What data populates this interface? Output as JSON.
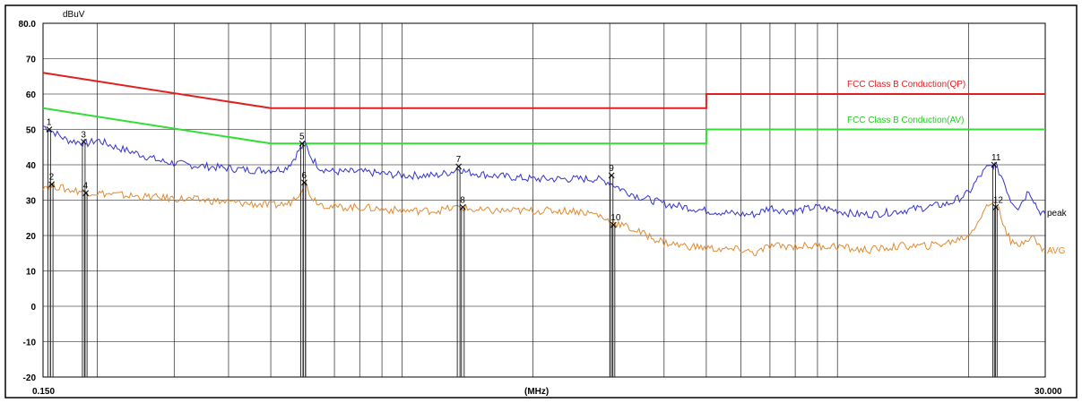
{
  "chart_data": {
    "type": "line",
    "title": "",
    "ylabel": "dBuV",
    "xlabel": "(MHz)",
    "x_scale": "log",
    "xlim": [
      0.15,
      30.0
    ],
    "ylim": [
      -20,
      80
    ],
    "x_start_label": "0.150",
    "x_end_label": "30.000",
    "y_ticks": [
      {
        "v": 80,
        "t": "80.0"
      },
      {
        "v": 70,
        "t": "70"
      },
      {
        "v": 60,
        "t": "60"
      },
      {
        "v": 50,
        "t": "50"
      },
      {
        "v": 40,
        "t": "40"
      },
      {
        "v": 30,
        "t": "30"
      },
      {
        "v": 20,
        "t": "20"
      },
      {
        "v": 10,
        "t": "10"
      },
      {
        "v": 0,
        "t": "0"
      },
      {
        "v": -10,
        "t": "-10"
      },
      {
        "v": -20,
        "t": "-20"
      }
    ],
    "limits": [
      {
        "name": "FCC Class B Conduction(QP)",
        "color": "#e02020",
        "points": [
          [
            0.15,
            66
          ],
          [
            0.5,
            56
          ],
          [
            5.0,
            56
          ],
          [
            5.0,
            60
          ],
          [
            30.0,
            60
          ]
        ]
      },
      {
        "name": "FCC Class B Conduction(AV)",
        "color": "#33dd33",
        "points": [
          [
            0.15,
            56
          ],
          [
            0.5,
            46
          ],
          [
            5.0,
            46
          ],
          [
            5.0,
            50
          ],
          [
            30.0,
            50
          ]
        ]
      }
    ],
    "series": [
      {
        "name": "peak",
        "color": "#3333cc",
        "points": [
          [
            0.15,
            51
          ],
          [
            0.155,
            50
          ],
          [
            0.16,
            49
          ],
          [
            0.17,
            47
          ],
          [
            0.18,
            46.5
          ],
          [
            0.19,
            46
          ],
          [
            0.2,
            47
          ],
          [
            0.22,
            45
          ],
          [
            0.25,
            43
          ],
          [
            0.28,
            41
          ],
          [
            0.32,
            40
          ],
          [
            0.36,
            39.5
          ],
          [
            0.4,
            39
          ],
          [
            0.45,
            38.5
          ],
          [
            0.5,
            38.5
          ],
          [
            0.54,
            39
          ],
          [
            0.56,
            41
          ],
          [
            0.58,
            44
          ],
          [
            0.6,
            46
          ],
          [
            0.62,
            42
          ],
          [
            0.65,
            39
          ],
          [
            0.7,
            38
          ],
          [
            0.8,
            38
          ],
          [
            0.9,
            37.5
          ],
          [
            1.0,
            37
          ],
          [
            1.2,
            37
          ],
          [
            1.3,
            38
          ],
          [
            1.35,
            39
          ],
          [
            1.4,
            38
          ],
          [
            1.6,
            37
          ],
          [
            2.0,
            36
          ],
          [
            2.5,
            36
          ],
          [
            2.8,
            36
          ],
          [
            3.0,
            35
          ],
          [
            3.2,
            33
          ],
          [
            3.5,
            31
          ],
          [
            4.0,
            29
          ],
          [
            4.5,
            28
          ],
          [
            5.0,
            27
          ],
          [
            5.5,
            26.5
          ],
          [
            6.0,
            26
          ],
          [
            6.5,
            26
          ],
          [
            7.0,
            28
          ],
          [
            7.5,
            27
          ],
          [
            8.0,
            27
          ],
          [
            9.0,
            28
          ],
          [
            10.0,
            27
          ],
          [
            11.0,
            26
          ],
          [
            12.0,
            26
          ],
          [
            14.0,
            27
          ],
          [
            16.0,
            28
          ],
          [
            18.0,
            29
          ],
          [
            20.0,
            32
          ],
          [
            21.0,
            36
          ],
          [
            22.0,
            39
          ],
          [
            23.0,
            40
          ],
          [
            24.0,
            36
          ],
          [
            25.0,
            30
          ],
          [
            26.0,
            28
          ],
          [
            27.0,
            31
          ],
          [
            27.5,
            33
          ],
          [
            28.0,
            31
          ],
          [
            29.0,
            27
          ],
          [
            30.0,
            26
          ]
        ]
      },
      {
        "name": "AVG",
        "color": "#e08a30",
        "points": [
          [
            0.15,
            34
          ],
          [
            0.16,
            34
          ],
          [
            0.17,
            33
          ],
          [
            0.2,
            32
          ],
          [
            0.25,
            31
          ],
          [
            0.3,
            30.5
          ],
          [
            0.35,
            30
          ],
          [
            0.4,
            29.5
          ],
          [
            0.5,
            28.5
          ],
          [
            0.55,
            29
          ],
          [
            0.58,
            32
          ],
          [
            0.6,
            35
          ],
          [
            0.62,
            31
          ],
          [
            0.65,
            29
          ],
          [
            0.7,
            28
          ],
          [
            0.8,
            28
          ],
          [
            0.9,
            27.5
          ],
          [
            1.0,
            27
          ],
          [
            1.2,
            27
          ],
          [
            1.35,
            28
          ],
          [
            1.5,
            27
          ],
          [
            2.0,
            27
          ],
          [
            2.5,
            27
          ],
          [
            2.8,
            26
          ],
          [
            3.0,
            24
          ],
          [
            3.2,
            23
          ],
          [
            3.5,
            21
          ],
          [
            4.0,
            18
          ],
          [
            4.5,
            17
          ],
          [
            5.0,
            16.5
          ],
          [
            5.5,
            16
          ],
          [
            6.0,
            16
          ],
          [
            6.5,
            15
          ],
          [
            7.0,
            17
          ],
          [
            8.0,
            17
          ],
          [
            9.0,
            17
          ],
          [
            10.0,
            17
          ],
          [
            11.0,
            16
          ],
          [
            12.0,
            16
          ],
          [
            14.0,
            17
          ],
          [
            16.0,
            17
          ],
          [
            18.0,
            18
          ],
          [
            20.0,
            20
          ],
          [
            21.0,
            24
          ],
          [
            22.0,
            28
          ],
          [
            23.0,
            30
          ],
          [
            24.0,
            24
          ],
          [
            25.0,
            18
          ],
          [
            26.0,
            17
          ],
          [
            27.0,
            19
          ],
          [
            28.0,
            20
          ],
          [
            29.0,
            17
          ],
          [
            30.0,
            16
          ]
        ]
      }
    ],
    "markers": [
      {
        "label": "1",
        "x": 0.155,
        "y": 50.0
      },
      {
        "label": "2",
        "x": 0.157,
        "y": 34.5
      },
      {
        "label": "3",
        "x": 0.186,
        "y": 46.5
      },
      {
        "label": "4",
        "x": 0.188,
        "y": 32.0
      },
      {
        "label": "5",
        "x": 0.59,
        "y": 46.0
      },
      {
        "label": "6",
        "x": 0.597,
        "y": 35.0
      },
      {
        "label": "7",
        "x": 1.35,
        "y": 39.5
      },
      {
        "label": "8",
        "x": 1.38,
        "y": 28.0
      },
      {
        "label": "9",
        "x": 3.03,
        "y": 37.0
      },
      {
        "label": "10",
        "x": 3.06,
        "y": 23.0
      },
      {
        "label": "11",
        "x": 22.9,
        "y": 40.0
      },
      {
        "label": "12",
        "x": 23.1,
        "y": 28.0
      }
    ],
    "grid": true,
    "legend": "right"
  }
}
